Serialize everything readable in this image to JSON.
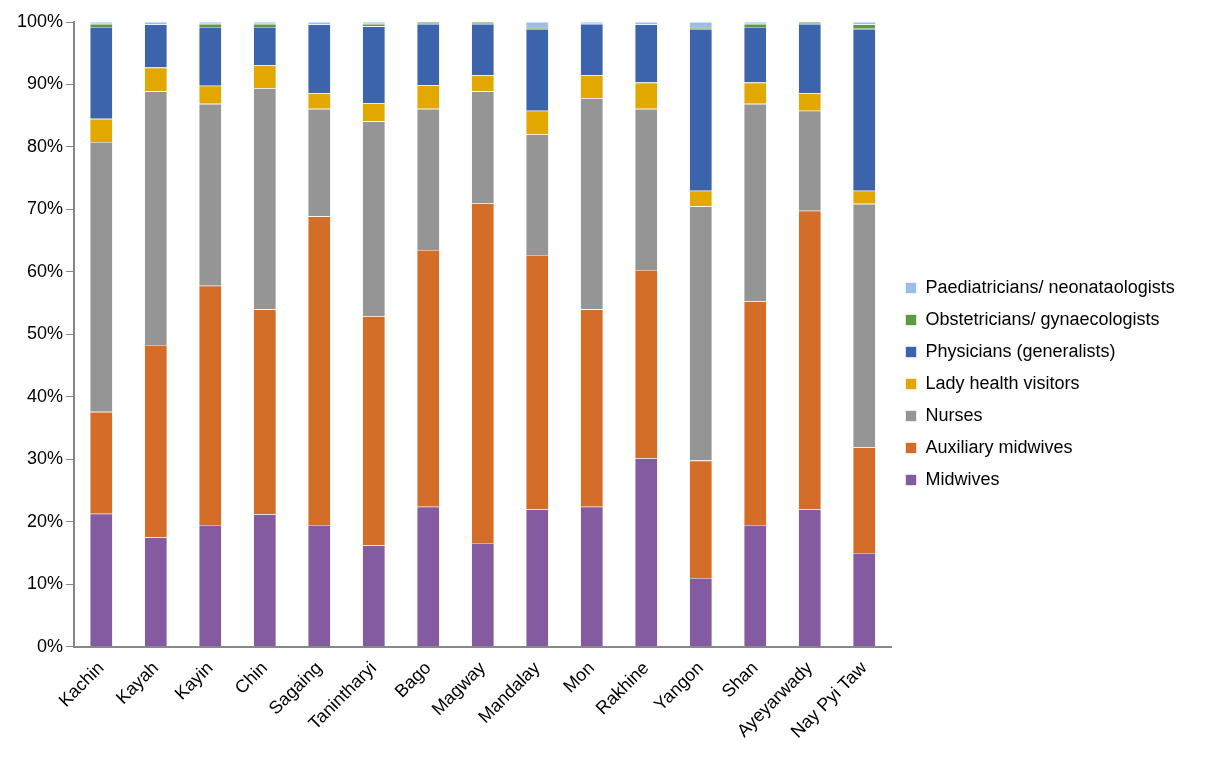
{
  "chart_data": {
    "type": "bar",
    "stacked": true,
    "legend": "right",
    "grid": false,
    "categories": [
      "Kachin",
      "Kayah",
      "Kayin",
      "Chin",
      "Sagaing",
      "Tanintharyi",
      "Bago",
      "Magway",
      "Mandalay",
      "Mon",
      "Rakhine",
      "Yangon",
      "Shan",
      "Ayeyarwady",
      "Nay Pyi Taw"
    ],
    "ylim": [
      0,
      100
    ],
    "yticks": [
      {
        "value": 0,
        "label": "0%"
      },
      {
        "value": 10,
        "label": "10%"
      },
      {
        "value": 20,
        "label": "20%"
      },
      {
        "value": 30,
        "label": "30%"
      },
      {
        "value": 40,
        "label": "40%"
      },
      {
        "value": 50,
        "label": "50%"
      },
      {
        "value": 60,
        "label": "60%"
      },
      {
        "value": 70,
        "label": "70%"
      },
      {
        "value": 80,
        "label": "80%"
      },
      {
        "value": 90,
        "label": "90%"
      },
      {
        "value": 100,
        "label": "100%"
      }
    ],
    "series": [
      {
        "name": "Midwives",
        "color": "#845ba0",
        "values": [
          21.3,
          17.5,
          19.5,
          21.2,
          19.5,
          16.2,
          22.4,
          16.6,
          22.0,
          22.4,
          30.2,
          11.0,
          19.5,
          22.0,
          15.0
        ]
      },
      {
        "name": "Auxiliary midwives",
        "color": "#d46d28",
        "values": [
          16.3,
          30.8,
          38.3,
          32.8,
          49.4,
          36.7,
          41.1,
          54.4,
          40.7,
          31.6,
          30.1,
          18.8,
          35.8,
          47.8,
          16.9
        ]
      },
      {
        "name": "Nurses",
        "color": "#959595",
        "values": [
          43.2,
          40.6,
          29.1,
          35.4,
          17.2,
          31.2,
          22.6,
          17.9,
          19.3,
          33.8,
          25.8,
          40.7,
          31.6,
          16.0,
          39.0
        ]
      },
      {
        "name": "Lady health visitors",
        "color": "#e2a800",
        "values": [
          3.7,
          3.8,
          2.9,
          3.7,
          2.5,
          2.9,
          3.8,
          2.6,
          3.8,
          3.7,
          4.2,
          2.5,
          3.4,
          2.8,
          2.1
        ]
      },
      {
        "name": "Physicians (generalists)",
        "color": "#3c64ad",
        "values": [
          14.7,
          6.9,
          9.4,
          6.1,
          11.0,
          12.3,
          9.8,
          8.2,
          13.1,
          8.2,
          9.3,
          25.9,
          8.9,
          11.1,
          25.9
        ]
      },
      {
        "name": "Obstetricians/ gynaecologists",
        "color": "#5f9a42",
        "values": [
          0.5,
          0,
          0.5,
          0.5,
          0,
          0.4,
          0.3,
          0.3,
          0.3,
          0,
          0,
          0.3,
          0.5,
          0.3,
          0.7
        ]
      },
      {
        "name": "Paediatricians/ neonataologists",
        "color": "#9cbde6",
        "values": [
          0.3,
          0.4,
          0.3,
          0.3,
          0.4,
          0.3,
          0,
          0,
          0.8,
          0.3,
          0.4,
          0.8,
          0.3,
          0,
          0.4
        ]
      }
    ]
  }
}
